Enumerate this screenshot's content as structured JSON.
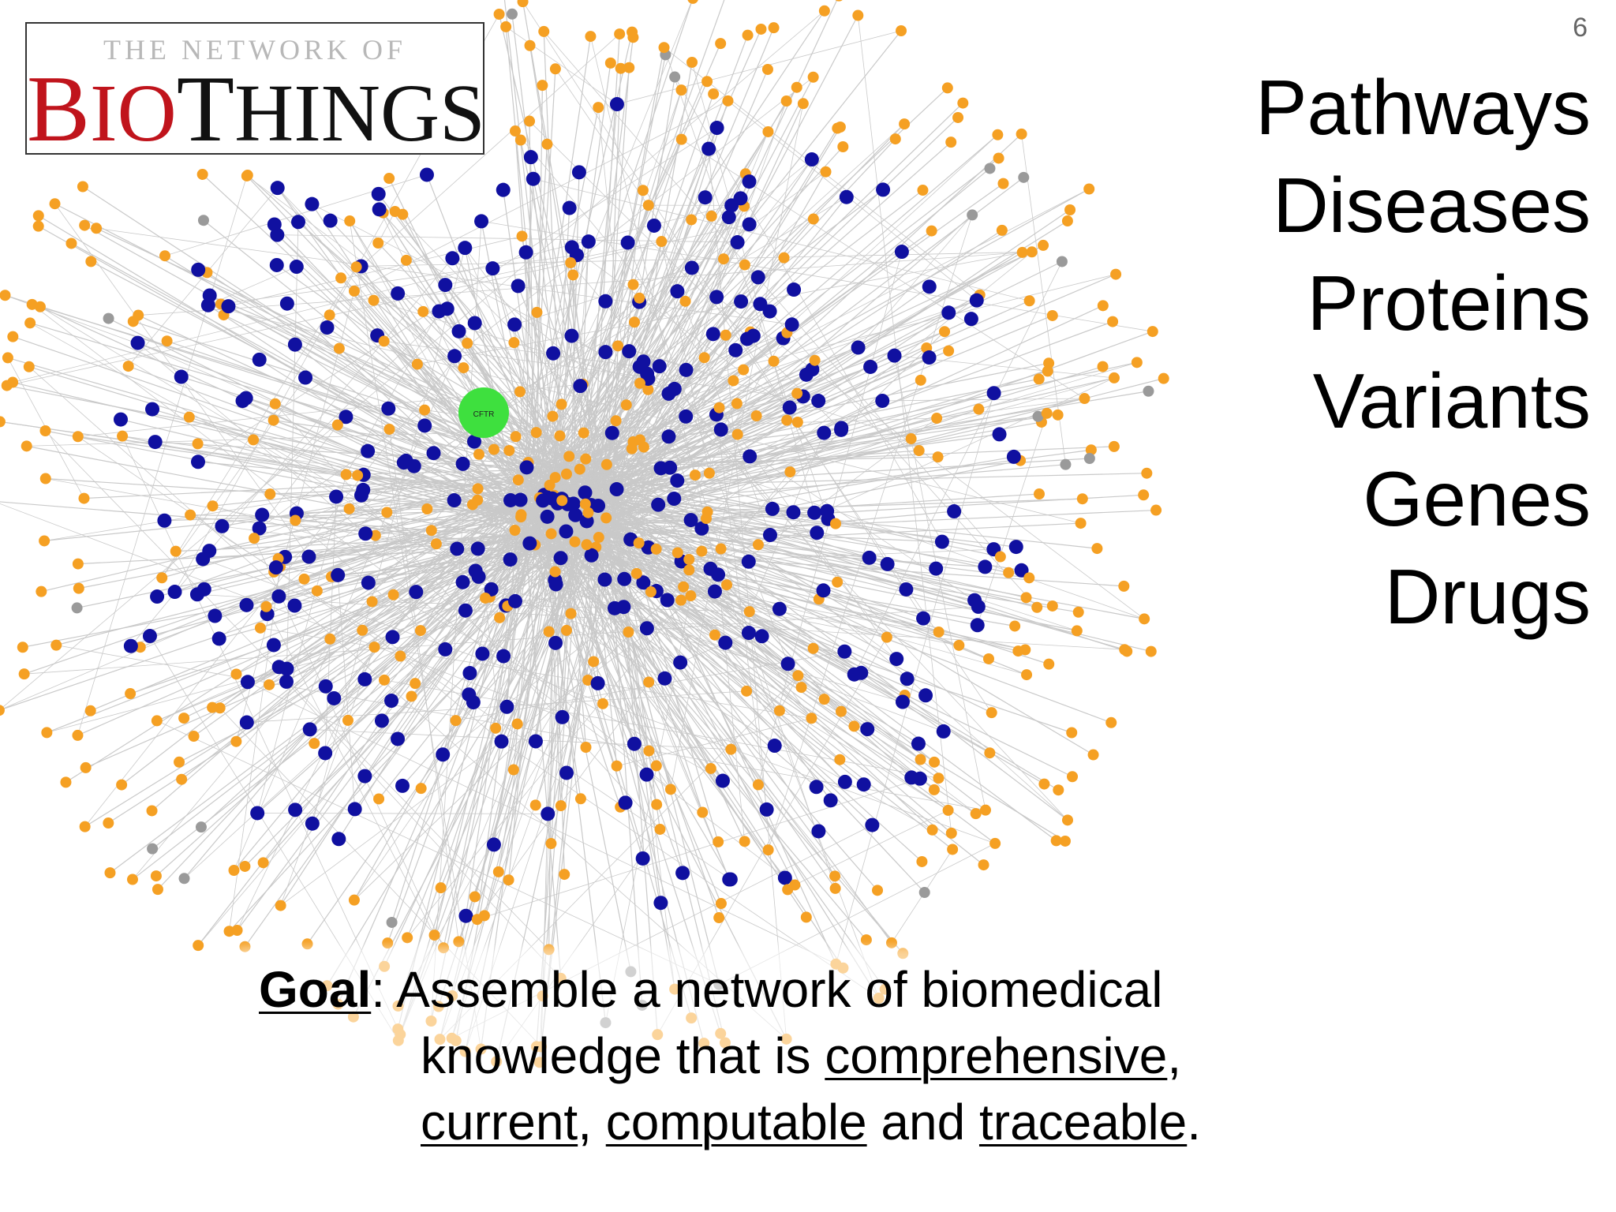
{
  "slide_number": "6",
  "logo": {
    "top_text": "The Network of",
    "bio": "BIO",
    "things": "THINGS"
  },
  "topics": [
    "Pathways",
    "Diseases",
    "Proteins",
    "Variants",
    "Genes",
    "Drugs"
  ],
  "goal": {
    "label": "Goal",
    "line1_rest": ": Assemble a network of biomedical",
    "line2_text": "knowledge that is ",
    "term1": "comprehensive",
    "line2_end": ",",
    "term2": "current",
    "sep1": ", ",
    "term3": "computable",
    "sep2": " and ",
    "term4": "traceable",
    "end": "."
  },
  "network": {
    "center_label": "CFTR",
    "colors": {
      "edge": "#c9c9c9",
      "blue_node": "#1010a0",
      "orange_node": "#f5a023",
      "gray_node": "#9a9a9a",
      "center_node": "#3ee03e"
    }
  }
}
